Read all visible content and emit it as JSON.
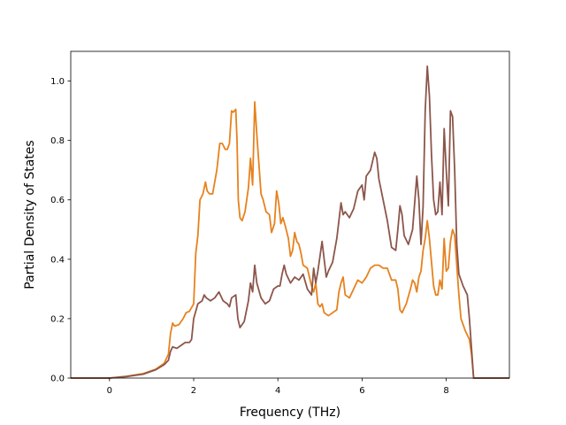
{
  "chart_data": {
    "type": "line",
    "title": "",
    "xlabel": "Frequency (THz)",
    "ylabel": "Partial Density of States",
    "xlim": [
      -0.92,
      9.5
    ],
    "ylim": [
      0.0,
      1.1
    ],
    "xticks": [
      0,
      2,
      4,
      6,
      8
    ],
    "yticks": [
      0.0,
      0.2,
      0.4,
      0.6,
      0.8,
      1.0
    ],
    "xtick_labels": [
      "0",
      "2",
      "4",
      "6",
      "8"
    ],
    "ytick_labels": [
      "0.0",
      "0.2",
      "0.4",
      "0.6",
      "0.8",
      "1.0"
    ],
    "grid": false,
    "legend": "none",
    "series": [
      {
        "color": "#e6821e",
        "points": [
          [
            -0.92,
            0
          ],
          [
            0,
            0
          ],
          [
            0.4,
            0.006
          ],
          [
            0.8,
            0.015
          ],
          [
            1.1,
            0.03
          ],
          [
            1.3,
            0.05
          ],
          [
            1.4,
            0.08
          ],
          [
            1.45,
            0.15
          ],
          [
            1.5,
            0.185
          ],
          [
            1.55,
            0.175
          ],
          [
            1.65,
            0.18
          ],
          [
            1.75,
            0.2
          ],
          [
            1.82,
            0.22
          ],
          [
            1.9,
            0.225
          ],
          [
            2.0,
            0.25
          ],
          [
            2.05,
            0.42
          ],
          [
            2.1,
            0.48
          ],
          [
            2.15,
            0.6
          ],
          [
            2.22,
            0.62
          ],
          [
            2.28,
            0.66
          ],
          [
            2.32,
            0.63
          ],
          [
            2.38,
            0.62
          ],
          [
            2.45,
            0.62
          ],
          [
            2.5,
            0.66
          ],
          [
            2.55,
            0.7
          ],
          [
            2.62,
            0.79
          ],
          [
            2.68,
            0.79
          ],
          [
            2.75,
            0.77
          ],
          [
            2.8,
            0.77
          ],
          [
            2.85,
            0.79
          ],
          [
            2.9,
            0.9
          ],
          [
            2.94,
            0.895
          ],
          [
            3.0,
            0.905
          ],
          [
            3.03,
            0.8
          ],
          [
            3.06,
            0.6
          ],
          [
            3.1,
            0.54
          ],
          [
            3.15,
            0.53
          ],
          [
            3.22,
            0.56
          ],
          [
            3.3,
            0.64
          ],
          [
            3.35,
            0.74
          ],
          [
            3.4,
            0.65
          ],
          [
            3.45,
            0.93
          ],
          [
            3.5,
            0.82
          ],
          [
            3.55,
            0.72
          ],
          [
            3.6,
            0.62
          ],
          [
            3.65,
            0.6
          ],
          [
            3.72,
            0.56
          ],
          [
            3.8,
            0.55
          ],
          [
            3.85,
            0.49
          ],
          [
            3.92,
            0.52
          ],
          [
            3.97,
            0.63
          ],
          [
            4.02,
            0.59
          ],
          [
            4.07,
            0.52
          ],
          [
            4.12,
            0.54
          ],
          [
            4.18,
            0.51
          ],
          [
            4.25,
            0.47
          ],
          [
            4.3,
            0.41
          ],
          [
            4.35,
            0.43
          ],
          [
            4.4,
            0.49
          ],
          [
            4.45,
            0.46
          ],
          [
            4.5,
            0.45
          ],
          [
            4.55,
            0.42
          ],
          [
            4.6,
            0.38
          ],
          [
            4.7,
            0.37
          ],
          [
            4.75,
            0.34
          ],
          [
            4.8,
            0.31
          ],
          [
            4.85,
            0.29
          ],
          [
            4.9,
            0.32
          ],
          [
            4.95,
            0.25
          ],
          [
            5.0,
            0.24
          ],
          [
            5.05,
            0.25
          ],
          [
            5.1,
            0.22
          ],
          [
            5.2,
            0.21
          ],
          [
            5.3,
            0.22
          ],
          [
            5.4,
            0.23
          ],
          [
            5.45,
            0.29
          ],
          [
            5.5,
            0.32
          ],
          [
            5.55,
            0.34
          ],
          [
            5.6,
            0.28
          ],
          [
            5.7,
            0.27
          ],
          [
            5.8,
            0.3
          ],
          [
            5.9,
            0.33
          ],
          [
            6.0,
            0.32
          ],
          [
            6.1,
            0.34
          ],
          [
            6.2,
            0.37
          ],
          [
            6.3,
            0.38
          ],
          [
            6.4,
            0.38
          ],
          [
            6.5,
            0.37
          ],
          [
            6.6,
            0.37
          ],
          [
            6.7,
            0.33
          ],
          [
            6.8,
            0.33
          ],
          [
            6.85,
            0.3
          ],
          [
            6.9,
            0.23
          ],
          [
            6.95,
            0.22
          ],
          [
            7.05,
            0.25
          ],
          [
            7.15,
            0.3
          ],
          [
            7.2,
            0.33
          ],
          [
            7.25,
            0.32
          ],
          [
            7.3,
            0.29
          ],
          [
            7.35,
            0.34
          ],
          [
            7.4,
            0.36
          ],
          [
            7.45,
            0.43
          ],
          [
            7.5,
            0.47
          ],
          [
            7.55,
            0.53
          ],
          [
            7.6,
            0.47
          ],
          [
            7.65,
            0.39
          ],
          [
            7.7,
            0.31
          ],
          [
            7.75,
            0.28
          ],
          [
            7.8,
            0.28
          ],
          [
            7.85,
            0.33
          ],
          [
            7.9,
            0.3
          ],
          [
            7.95,
            0.47
          ],
          [
            8.0,
            0.36
          ],
          [
            8.05,
            0.37
          ],
          [
            8.1,
            0.46
          ],
          [
            8.15,
            0.5
          ],
          [
            8.2,
            0.48
          ],
          [
            8.25,
            0.38
          ],
          [
            8.3,
            0.28
          ],
          [
            8.35,
            0.2
          ],
          [
            8.45,
            0.16
          ],
          [
            8.55,
            0.13
          ],
          [
            8.6,
            0.08
          ],
          [
            8.65,
            0.0
          ],
          [
            9.5,
            0
          ]
        ]
      },
      {
        "color": "#8c564b",
        "points": [
          [
            -0.92,
            0
          ],
          [
            0,
            0
          ],
          [
            0.4,
            0.005
          ],
          [
            0.8,
            0.013
          ],
          [
            1.1,
            0.028
          ],
          [
            1.3,
            0.045
          ],
          [
            1.4,
            0.06
          ],
          [
            1.45,
            0.09
          ],
          [
            1.5,
            0.105
          ],
          [
            1.6,
            0.1
          ],
          [
            1.7,
            0.11
          ],
          [
            1.8,
            0.12
          ],
          [
            1.9,
            0.12
          ],
          [
            1.95,
            0.13
          ],
          [
            2.0,
            0.2
          ],
          [
            2.1,
            0.25
          ],
          [
            2.2,
            0.26
          ],
          [
            2.25,
            0.28
          ],
          [
            2.3,
            0.27
          ],
          [
            2.4,
            0.26
          ],
          [
            2.5,
            0.27
          ],
          [
            2.6,
            0.29
          ],
          [
            2.7,
            0.26
          ],
          [
            2.8,
            0.25
          ],
          [
            2.85,
            0.24
          ],
          [
            2.9,
            0.27
          ],
          [
            3.0,
            0.28
          ],
          [
            3.05,
            0.2
          ],
          [
            3.1,
            0.17
          ],
          [
            3.2,
            0.19
          ],
          [
            3.3,
            0.26
          ],
          [
            3.35,
            0.32
          ],
          [
            3.4,
            0.29
          ],
          [
            3.45,
            0.38
          ],
          [
            3.5,
            0.32
          ],
          [
            3.6,
            0.27
          ],
          [
            3.7,
            0.25
          ],
          [
            3.8,
            0.26
          ],
          [
            3.9,
            0.3
          ],
          [
            4.0,
            0.31
          ],
          [
            4.05,
            0.31
          ],
          [
            4.1,
            0.35
          ],
          [
            4.15,
            0.38
          ],
          [
            4.2,
            0.35
          ],
          [
            4.3,
            0.32
          ],
          [
            4.4,
            0.34
          ],
          [
            4.5,
            0.33
          ],
          [
            4.6,
            0.35
          ],
          [
            4.7,
            0.3
          ],
          [
            4.8,
            0.28
          ],
          [
            4.85,
            0.37
          ],
          [
            4.9,
            0.32
          ],
          [
            4.95,
            0.36
          ],
          [
            5.0,
            0.41
          ],
          [
            5.05,
            0.46
          ],
          [
            5.1,
            0.4
          ],
          [
            5.15,
            0.34
          ],
          [
            5.2,
            0.36
          ],
          [
            5.3,
            0.39
          ],
          [
            5.4,
            0.47
          ],
          [
            5.45,
            0.53
          ],
          [
            5.5,
            0.59
          ],
          [
            5.55,
            0.55
          ],
          [
            5.6,
            0.56
          ],
          [
            5.7,
            0.54
          ],
          [
            5.8,
            0.57
          ],
          [
            5.9,
            0.63
          ],
          [
            6.0,
            0.65
          ],
          [
            6.05,
            0.6
          ],
          [
            6.1,
            0.68
          ],
          [
            6.2,
            0.7
          ],
          [
            6.3,
            0.76
          ],
          [
            6.35,
            0.74
          ],
          [
            6.4,
            0.67
          ],
          [
            6.5,
            0.6
          ],
          [
            6.6,
            0.53
          ],
          [
            6.7,
            0.44
          ],
          [
            6.8,
            0.43
          ],
          [
            6.85,
            0.5
          ],
          [
            6.9,
            0.58
          ],
          [
            6.95,
            0.55
          ],
          [
            7.0,
            0.48
          ],
          [
            7.1,
            0.45
          ],
          [
            7.2,
            0.5
          ],
          [
            7.3,
            0.68
          ],
          [
            7.35,
            0.6
          ],
          [
            7.4,
            0.45
          ],
          [
            7.45,
            0.58
          ],
          [
            7.5,
            0.9
          ],
          [
            7.55,
            1.05
          ],
          [
            7.6,
            0.95
          ],
          [
            7.65,
            0.75
          ],
          [
            7.7,
            0.6
          ],
          [
            7.75,
            0.55
          ],
          [
            7.8,
            0.56
          ],
          [
            7.85,
            0.66
          ],
          [
            7.9,
            0.55
          ],
          [
            7.95,
            0.84
          ],
          [
            8.0,
            0.7
          ],
          [
            8.05,
            0.58
          ],
          [
            8.1,
            0.9
          ],
          [
            8.15,
            0.88
          ],
          [
            8.2,
            0.7
          ],
          [
            8.25,
            0.45
          ],
          [
            8.3,
            0.35
          ],
          [
            8.4,
            0.31
          ],
          [
            8.5,
            0.28
          ],
          [
            8.55,
            0.2
          ],
          [
            8.6,
            0.1
          ],
          [
            8.65,
            0.0
          ],
          [
            9.5,
            0
          ]
        ]
      }
    ]
  }
}
